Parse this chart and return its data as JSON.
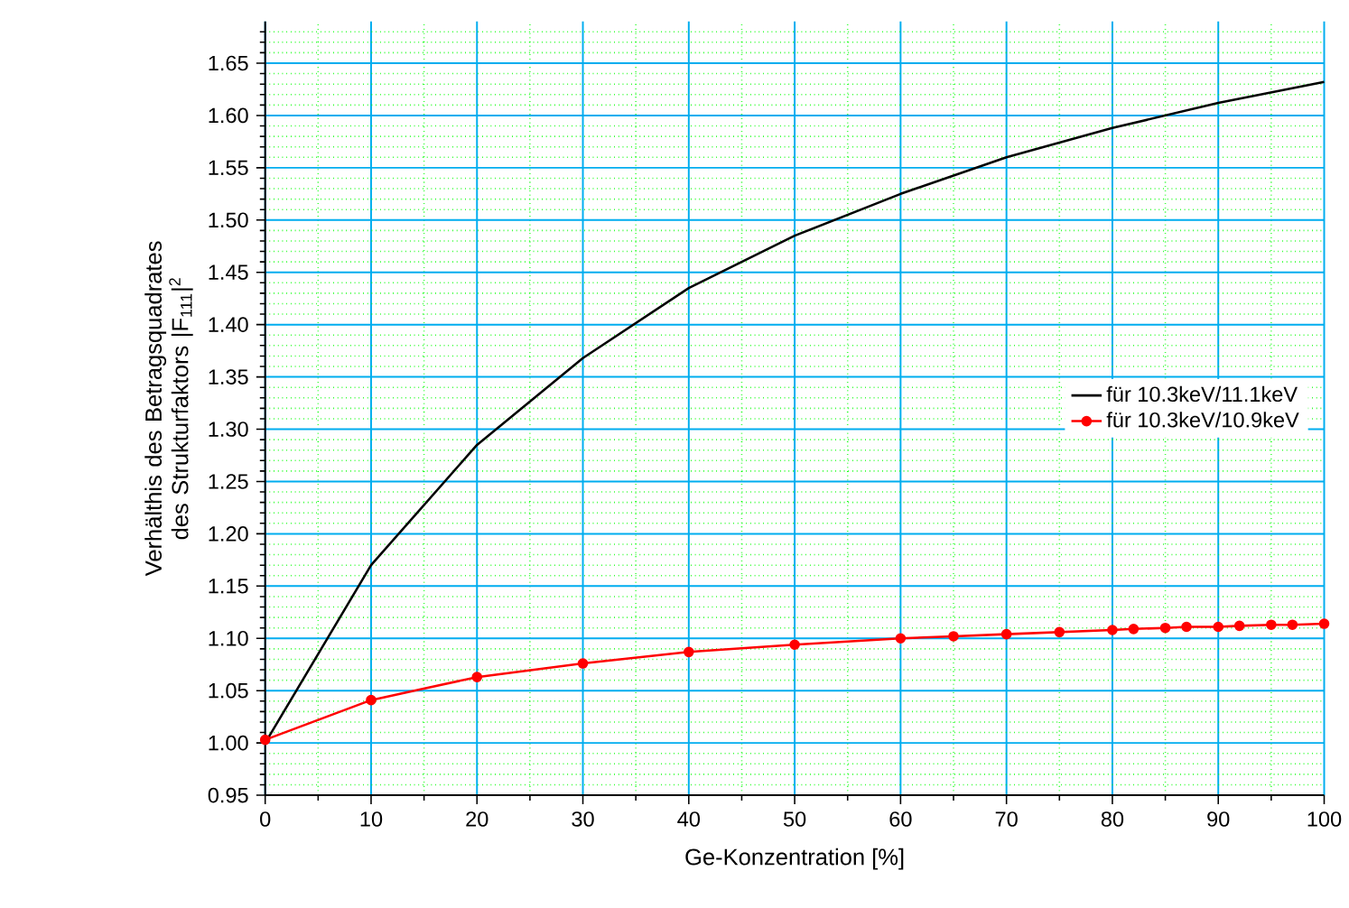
{
  "chart_data": {
    "type": "line",
    "xlabel": "Ge-Konzentration [%]",
    "ylabel": "Verhälthis des Betragsquadrates des Strukturfaktors |F$_{111}$|$^{2}$",
    "xlim": [
      0,
      100
    ],
    "xticks": [
      0,
      {
        "value": 5,
        "label": null
      },
      10,
      {
        "value": 15,
        "label": null
      },
      20,
      {
        "value": 25,
        "label": null
      },
      30,
      {
        "value": 35,
        "label": null
      },
      40,
      {
        "value": 45,
        "label": null
      },
      50,
      {
        "value": 55,
        "label": null
      },
      60,
      {
        "value": 65,
        "label": null
      },
      70,
      {
        "value": 75,
        "label": null
      },
      80,
      {
        "value": 85,
        "label": null
      },
      90,
      {
        "value": 95,
        "label": null
      },
      100
    ],
    "ylim": [
      0.95,
      1.69
    ],
    "yticks": [
      {
        "value": 0.95,
        "label": "0.95"
      },
      {
        "value": 0.96,
        "label": null
      },
      {
        "value": 0.97,
        "label": null
      },
      {
        "value": 0.98,
        "label": null
      },
      {
        "value": 0.99,
        "label": null
      },
      {
        "value": 1.0,
        "label": "1.00"
      },
      {
        "value": 1.01,
        "label": null
      },
      {
        "value": 1.02,
        "label": null
      },
      {
        "value": 1.03,
        "label": null
      },
      {
        "value": 1.04,
        "label": null
      },
      {
        "value": 1.05,
        "label": "1.05"
      },
      {
        "value": 1.06,
        "label": null
      },
      {
        "value": 1.07,
        "label": null
      },
      {
        "value": 1.08,
        "label": null
      },
      {
        "value": 1.09,
        "label": null
      },
      {
        "value": 1.1,
        "label": "1.10"
      },
      {
        "value": 1.11,
        "label": null
      },
      {
        "value": 1.12,
        "label": null
      },
      {
        "value": 1.13,
        "label": null
      },
      {
        "value": 1.14,
        "label": null
      },
      {
        "value": 1.15,
        "label": "1.15"
      },
      {
        "value": 1.16,
        "label": null
      },
      {
        "value": 1.17,
        "label": null
      },
      {
        "value": 1.18,
        "label": null
      },
      {
        "value": 1.19,
        "label": null
      },
      {
        "value": 1.2,
        "label": "1.20"
      },
      {
        "value": 1.21,
        "label": null
      },
      {
        "value": 1.22,
        "label": null
      },
      {
        "value": 1.23,
        "label": null
      },
      {
        "value": 1.24,
        "label": null
      },
      {
        "value": 1.25,
        "label": "1.25"
      },
      {
        "value": 1.26,
        "label": null
      },
      {
        "value": 1.27,
        "label": null
      },
      {
        "value": 1.28,
        "label": null
      },
      {
        "value": 1.29,
        "label": null
      },
      {
        "value": 1.3,
        "label": "1.30"
      },
      {
        "value": 1.31,
        "label": null
      },
      {
        "value": 1.32,
        "label": null
      },
      {
        "value": 1.33,
        "label": null
      },
      {
        "value": 1.34,
        "label": null
      },
      {
        "value": 1.35,
        "label": "1.35"
      },
      {
        "value": 1.36,
        "label": null
      },
      {
        "value": 1.37,
        "label": null
      },
      {
        "value": 1.38,
        "label": null
      },
      {
        "value": 1.39,
        "label": null
      },
      {
        "value": 1.4,
        "label": "1.40"
      },
      {
        "value": 1.41,
        "label": null
      },
      {
        "value": 1.42,
        "label": null
      },
      {
        "value": 1.43,
        "label": null
      },
      {
        "value": 1.44,
        "label": null
      },
      {
        "value": 1.45,
        "label": "1.45"
      },
      {
        "value": 1.46,
        "label": null
      },
      {
        "value": 1.47,
        "label": null
      },
      {
        "value": 1.48,
        "label": null
      },
      {
        "value": 1.49,
        "label": null
      },
      {
        "value": 1.5,
        "label": "1.50"
      },
      {
        "value": 1.51,
        "label": null
      },
      {
        "value": 1.52,
        "label": null
      },
      {
        "value": 1.53,
        "label": null
      },
      {
        "value": 1.54,
        "label": null
      },
      {
        "value": 1.55,
        "label": "1.55"
      },
      {
        "value": 1.56,
        "label": null
      },
      {
        "value": 1.57,
        "label": null
      },
      {
        "value": 1.58,
        "label": null
      },
      {
        "value": 1.59,
        "label": null
      },
      {
        "value": 1.6,
        "label": "1.60"
      },
      {
        "value": 1.61,
        "label": null
      },
      {
        "value": 1.62,
        "label": null
      },
      {
        "value": 1.63,
        "label": null
      },
      {
        "value": 1.64,
        "label": null
      },
      {
        "value": 1.65,
        "label": "1.65"
      },
      {
        "value": 1.66,
        "label": null
      },
      {
        "value": 1.67,
        "label": null
      },
      {
        "value": 1.68,
        "label": null
      }
    ],
    "grid": true,
    "legend": "right",
    "series": [
      {
        "name": "für 10.3keV/11.1keV",
        "color": "#000000",
        "marker": "none",
        "x": [
          0,
          10,
          20,
          30,
          40,
          50,
          60,
          70,
          80,
          90,
          100
        ],
        "values": [
          1.0,
          1.17,
          1.285,
          1.368,
          1.435,
          1.485,
          1.525,
          1.56,
          1.588,
          1.612,
          1.632
        ]
      },
      {
        "name": "für 10.3keV/10.9keV",
        "color": "#ff0000",
        "marker": "circle",
        "x": [
          0,
          10,
          20,
          30,
          40,
          50,
          60,
          65,
          70,
          75,
          80,
          82,
          85,
          87,
          90,
          92,
          95,
          97,
          100
        ],
        "values": [
          1.003,
          1.041,
          1.063,
          1.076,
          1.087,
          1.094,
          1.1,
          1.102,
          1.104,
          1.106,
          1.108,
          1.109,
          1.11,
          1.111,
          1.111,
          1.112,
          1.113,
          1.113,
          1.114
        ]
      }
    ]
  }
}
